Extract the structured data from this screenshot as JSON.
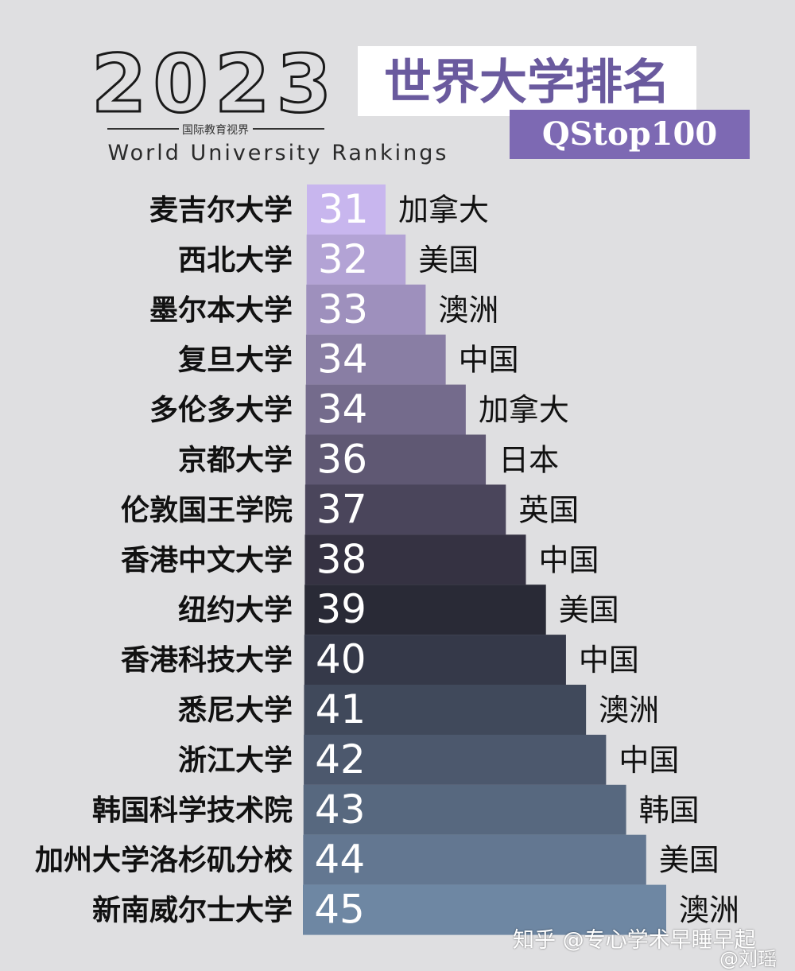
{
  "header": {
    "year": "2023",
    "org": "国际教育视界",
    "subtitle": "World University Rankings",
    "title": "世界大学排名",
    "badge": "QStop100"
  },
  "colors": {
    "background": "#dfdfe1",
    "title_bg": "#ffffff",
    "title_text": "#6a5a9e",
    "badge_bg": "#7d69b3",
    "bar_start": "#c8b6ee",
    "bar_mid": "#262531",
    "bar_end": "#6e87a3"
  },
  "chart_data": {
    "type": "bar",
    "orientation": "horizontal",
    "categories": [
      "麦吉尔大学",
      "西北大学",
      "墨尔本大学",
      "复旦大学",
      "多伦多大学",
      "京都大学",
      "伦敦国王学院",
      "香港中文大学",
      "纽约大学",
      "香港科技大学",
      "悉尼大学",
      "浙江大学",
      "韩国科学技术院",
      "加州大学洛杉矶分校",
      "新南威尔士大学"
    ],
    "values": [
      31,
      32,
      33,
      34,
      34,
      36,
      37,
      38,
      39,
      40,
      41,
      42,
      43,
      44,
      45
    ],
    "countries": [
      "加拿大",
      "美国",
      "澳洲",
      "中国",
      "加拿大",
      "日本",
      "英国",
      "中国",
      "美国",
      "中国",
      "澳洲",
      "中国",
      "韩国",
      "美国",
      "澳洲"
    ]
  },
  "watermark": {
    "text": "知乎 @专心学术早睡早起",
    "text2": "@刘瑶"
  }
}
